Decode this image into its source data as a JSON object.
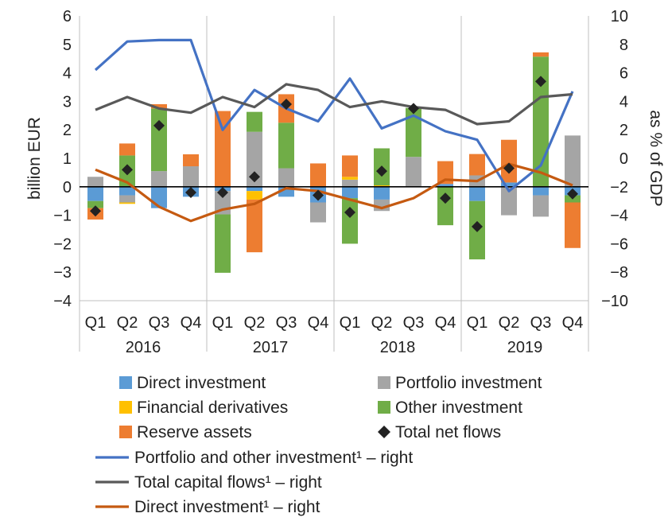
{
  "chart_data": {
    "type": "bar",
    "stacked": true,
    "groups": [
      "2016",
      "2017",
      "2018",
      "2019"
    ],
    "categories": [
      "Q1",
      "Q2",
      "Q3",
      "Q4",
      "Q1",
      "Q2",
      "Q3",
      "Q4",
      "Q1",
      "Q2",
      "Q3",
      "Q4",
      "Q1",
      "Q2",
      "Q3",
      "Q4"
    ],
    "ylabel": "billion  EUR",
    "ylim": [
      -4,
      6
    ],
    "yticks": [
      "−4",
      "−3",
      "−2",
      "−1",
      "0",
      "1",
      "2",
      "3",
      "4",
      "5",
      "6"
    ],
    "y2label": "as % of GDP",
    "y2lim": [
      -10,
      10
    ],
    "y2ticks": [
      "−10",
      "−8",
      "−6",
      "−4",
      "−2",
      "0",
      "2",
      "4",
      "6",
      "8",
      "10"
    ],
    "bar_series": [
      {
        "name": "Direct investment",
        "color": "#5b9bd5",
        "values": [
          -0.5,
          -0.3,
          -0.75,
          -0.35,
          -0.15,
          -0.15,
          -0.35,
          -0.55,
          -0.4,
          -0.45,
          0.0,
          0.1,
          -0.5,
          0.15,
          -0.3,
          -0.3
        ]
      },
      {
        "name": "Portfolio investment",
        "color": "#a5a5a5",
        "values": [
          0.35,
          -0.25,
          0.55,
          0.72,
          -0.82,
          1.93,
          0.65,
          -0.7,
          0.25,
          -0.4,
          1.05,
          0.0,
          0.4,
          -1.0,
          -0.75,
          1.8
        ]
      },
      {
        "name": "Financial derivatives",
        "color": "#ffc000",
        "values": [
          0.0,
          -0.05,
          0.0,
          0.0,
          0.0,
          -0.3,
          0.0,
          0.02,
          0.1,
          0.05,
          0.0,
          0.0,
          0.0,
          0.0,
          0.0,
          0.0
        ]
      },
      {
        "name": "Other investment",
        "color": "#70ad47",
        "values": [
          -0.25,
          1.1,
          2.2,
          0.0,
          -2.05,
          0.7,
          1.6,
          0.0,
          -1.6,
          1.3,
          1.72,
          -1.35,
          -2.05,
          0.0,
          4.57,
          -0.25
        ]
      },
      {
        "name": "Reserve assets",
        "color": "#ed7d31",
        "values": [
          -0.4,
          0.42,
          0.15,
          0.42,
          2.66,
          -1.85,
          1.0,
          0.8,
          0.75,
          0.0,
          0.0,
          0.8,
          0.75,
          1.5,
          0.15,
          -1.6
        ]
      }
    ],
    "marker_series": {
      "name": "Total net flows",
      "color": "#222222",
      "values": [
        -0.85,
        0.6,
        2.15,
        -0.2,
        -0.2,
        0.35,
        2.9,
        -0.3,
        -0.9,
        0.55,
        2.75,
        -0.4,
        -1.4,
        0.65,
        3.7,
        -0.25
      ]
    },
    "line_series": [
      {
        "name": "Portfolio and other investment¹ – right",
        "color": "#4472c4",
        "values": [
          6.2,
          8.2,
          8.3,
          8.3,
          2.0,
          4.8,
          3.5,
          2.6,
          5.6,
          2.1,
          3.0,
          1.9,
          1.3,
          -2.3,
          -0.5,
          4.7
        ]
      },
      {
        "name": "Total capital flows¹ – right",
        "color": "#595959",
        "values": [
          3.4,
          4.3,
          3.5,
          3.2,
          4.3,
          3.6,
          5.2,
          4.8,
          3.6,
          4.0,
          3.6,
          3.4,
          2.4,
          2.6,
          4.3,
          4.5
        ]
      },
      {
        "name": "Direct investment¹ – right",
        "color": "#c55a11",
        "values": [
          -0.8,
          -1.7,
          -3.4,
          -4.4,
          -3.6,
          -3.2,
          -2.1,
          -2.3,
          -2.9,
          -3.5,
          -2.8,
          -1.5,
          -1.6,
          -0.4,
          -1.0,
          -1.9
        ]
      }
    ],
    "legend": {
      "placement": "bottom",
      "items": [
        {
          "label": "Direct investment",
          "kind": "box",
          "color": "#5b9bd5"
        },
        {
          "label": "Portfolio investment",
          "kind": "box",
          "color": "#a5a5a5"
        },
        {
          "label": "Financial derivatives",
          "kind": "box",
          "color": "#ffc000"
        },
        {
          "label": "Other investment",
          "kind": "box",
          "color": "#70ad47"
        },
        {
          "label": "Reserve assets",
          "kind": "box",
          "color": "#ed7d31"
        },
        {
          "label": "Total net flows",
          "kind": "diamond",
          "color": "#222222"
        },
        {
          "label": "Portfolio and other investment¹ – right",
          "kind": "line",
          "color": "#4472c4"
        },
        {
          "label": "Total capital flows¹ – right",
          "kind": "line",
          "color": "#595959"
        },
        {
          "label": "Direct investment¹ – right",
          "kind": "line",
          "color": "#c55a11"
        }
      ]
    }
  }
}
